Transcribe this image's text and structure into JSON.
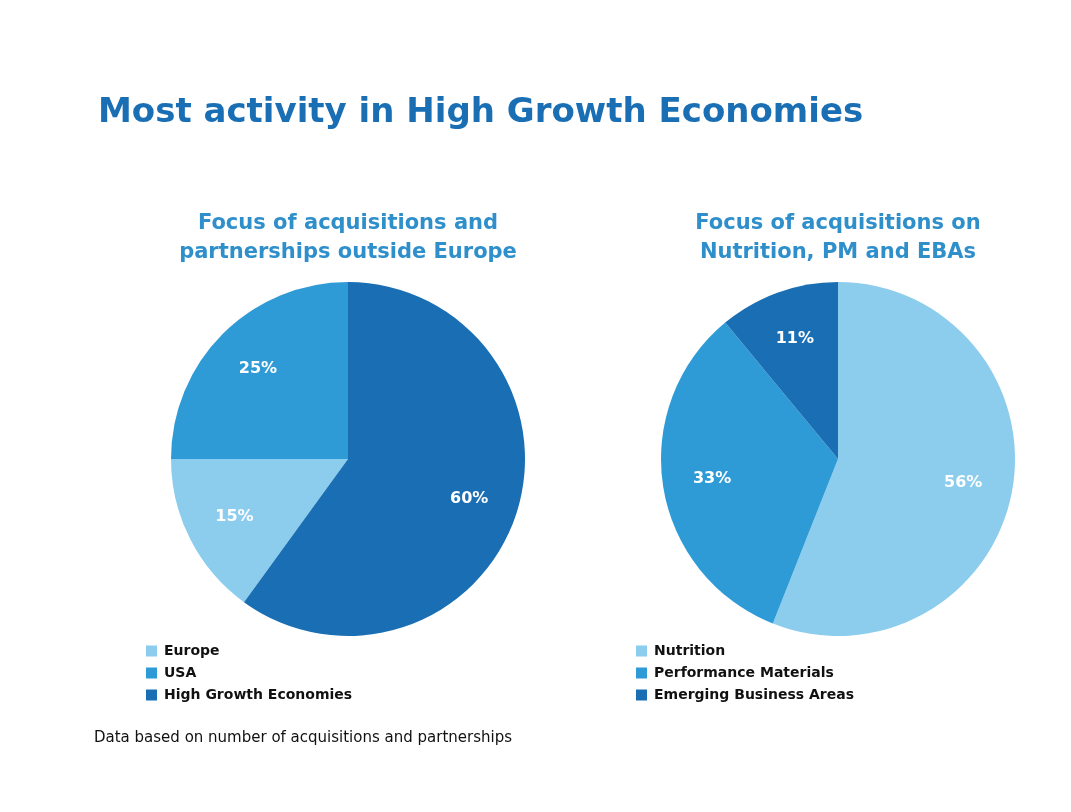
{
  "chart_data": [
    {
      "type": "other",
      "title": "Most activity in High Growth Economies",
      "annotations": [
        "Data based on number of acquisitions and partnerships"
      ]
    },
    {
      "type": "pie",
      "title": "Focus of acquisitions and partnerships outside Europe",
      "categories": [
        "Europe",
        "USA",
        "High Growth Economies"
      ],
      "values": [
        15,
        25,
        60
      ],
      "value_labels": [
        "15%",
        "25%",
        "60%"
      ],
      "colors": [
        "#8ccdee",
        "#2e9bd6",
        "#1a6fb4"
      ],
      "legend": "bottom"
    },
    {
      "type": "pie",
      "title": "Focus of acquisitions on Nutrition, PM and EBAs",
      "categories": [
        "Nutrition",
        "Performance Materials",
        "Emerging Business Areas"
      ],
      "values": [
        56,
        33,
        11
      ],
      "value_labels": [
        "56%",
        "33%",
        "11%"
      ],
      "colors": [
        "#8ccdee",
        "#2e9bd6",
        "#1a6fb4"
      ],
      "legend": "bottom"
    }
  ]
}
